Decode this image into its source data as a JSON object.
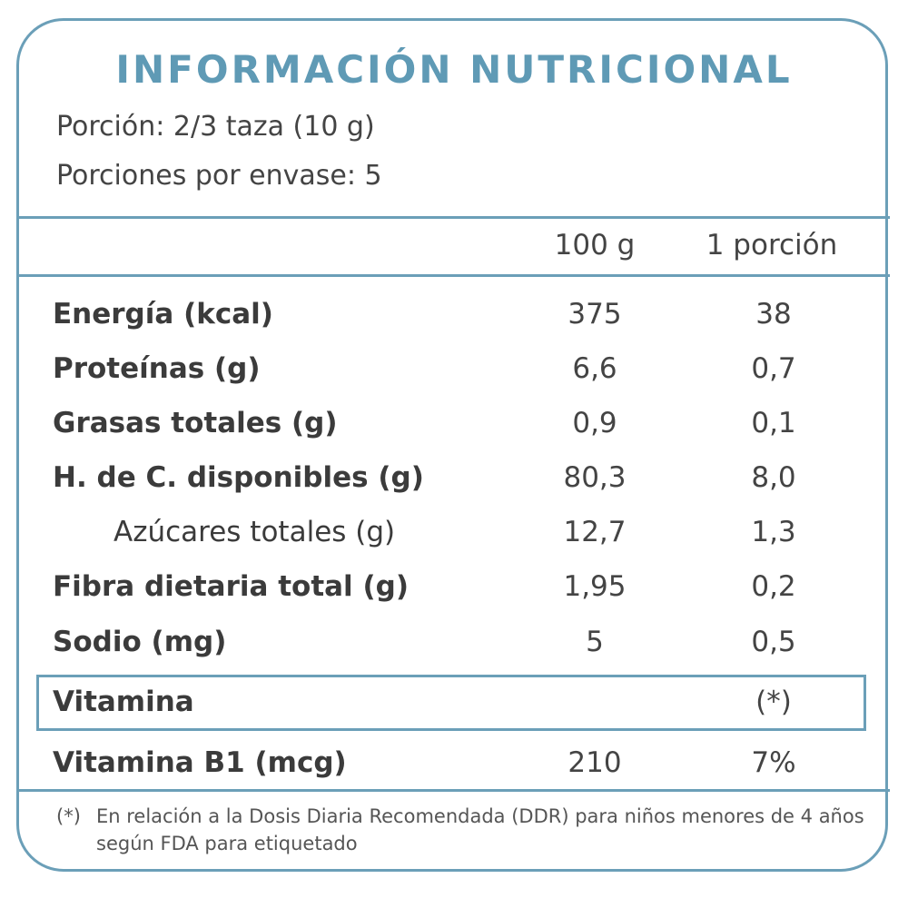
{
  "title": "INFORMACIÓN NUTRICIONAL",
  "serving": {
    "portion": "Porción: 2/3 taza  (10 g)",
    "per_package": "Porciones por envase: 5"
  },
  "columns": [
    "100 g",
    "1 porción"
  ],
  "rows": [
    {
      "label": "Energía (kcal)",
      "per100": "375",
      "perPortion": "38"
    },
    {
      "label": "Proteínas (g)",
      "per100": "6,6",
      "perPortion": "0,7"
    },
    {
      "label": "Grasas totales (g)",
      "per100": "0,9",
      "perPortion": "0,1"
    },
    {
      "label": "H. de C. disponibles (g)",
      "per100": "80,3",
      "perPortion": "8,0"
    },
    {
      "label": "Azúcares totales (g)",
      "per100": "12,7",
      "perPortion": "1,3"
    },
    {
      "label": "Fibra dietaria total (g)",
      "per100": "1,95",
      "perPortion": "0,2"
    },
    {
      "label": "Sodio (mg)",
      "per100": "5",
      "perPortion": "0,5"
    }
  ],
  "vitamin_header": {
    "label": "Vitamina",
    "note": "(*)"
  },
  "vitamin_rows": [
    {
      "label": "Vitamina B1 (mcg)",
      "per100": "210",
      "perPortion": "7%"
    }
  ],
  "footnote": {
    "marker": "(*)",
    "text": "En relación a la Dosis Diaria Recomendada (DDR) para niños menores de 4 años según FDA para etiquetado"
  },
  "colors": {
    "accent": "#6b9fb8",
    "title": "#5f9ab5",
    "text": "#3b3b3b"
  }
}
